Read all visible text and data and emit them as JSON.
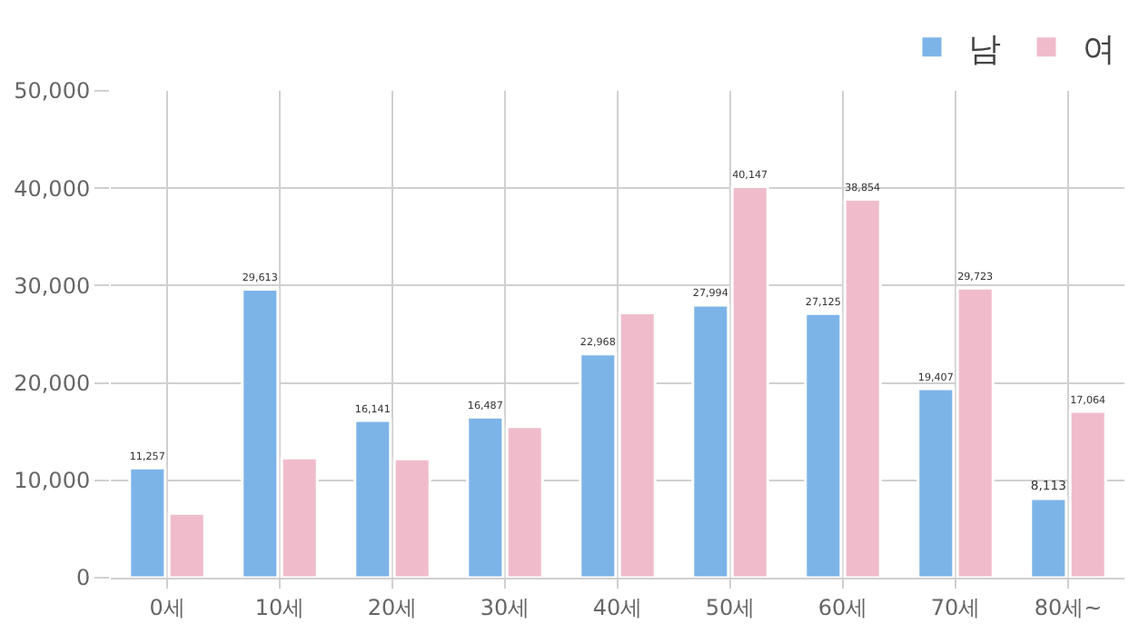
{
  "chart_data": {
    "type": "bar",
    "categories": [
      "0세",
      "10세",
      "20세",
      "30세",
      "40세",
      "50세",
      "60세",
      "70세",
      "80세~"
    ],
    "series": [
      {
        "name": "남",
        "color": "#7db4e8",
        "values": [
          11257,
          29613,
          16141,
          16487,
          22968,
          27994,
          27125,
          19407,
          8113
        ],
        "value_labels": [
          "11,257",
          "29,613",
          "16,141",
          "16,487",
          "22,968",
          "27,994",
          "27,125",
          "19,407",
          "8,113"
        ]
      },
      {
        "name": "여",
        "color": "#f0bccb",
        "values": [
          6600,
          12300,
          12200,
          15500,
          27200,
          40147,
          38854,
          29723,
          17064
        ],
        "value_labels": [
          null,
          null,
          null,
          null,
          null,
          "40,147",
          "38,854",
          "29,723",
          "17,064"
        ]
      }
    ],
    "ylim": [
      0,
      50000
    ],
    "yticks": [
      {
        "value": 0,
        "label": "0"
      },
      {
        "value": 10000,
        "label": "10,000"
      },
      {
        "value": 20000,
        "label": "20,000"
      },
      {
        "value": 30000,
        "label": "30,000"
      },
      {
        "value": 40000,
        "label": "40,000"
      },
      {
        "value": 50000,
        "label": "50,000"
      }
    ],
    "grid": true,
    "legend": "top right"
  }
}
